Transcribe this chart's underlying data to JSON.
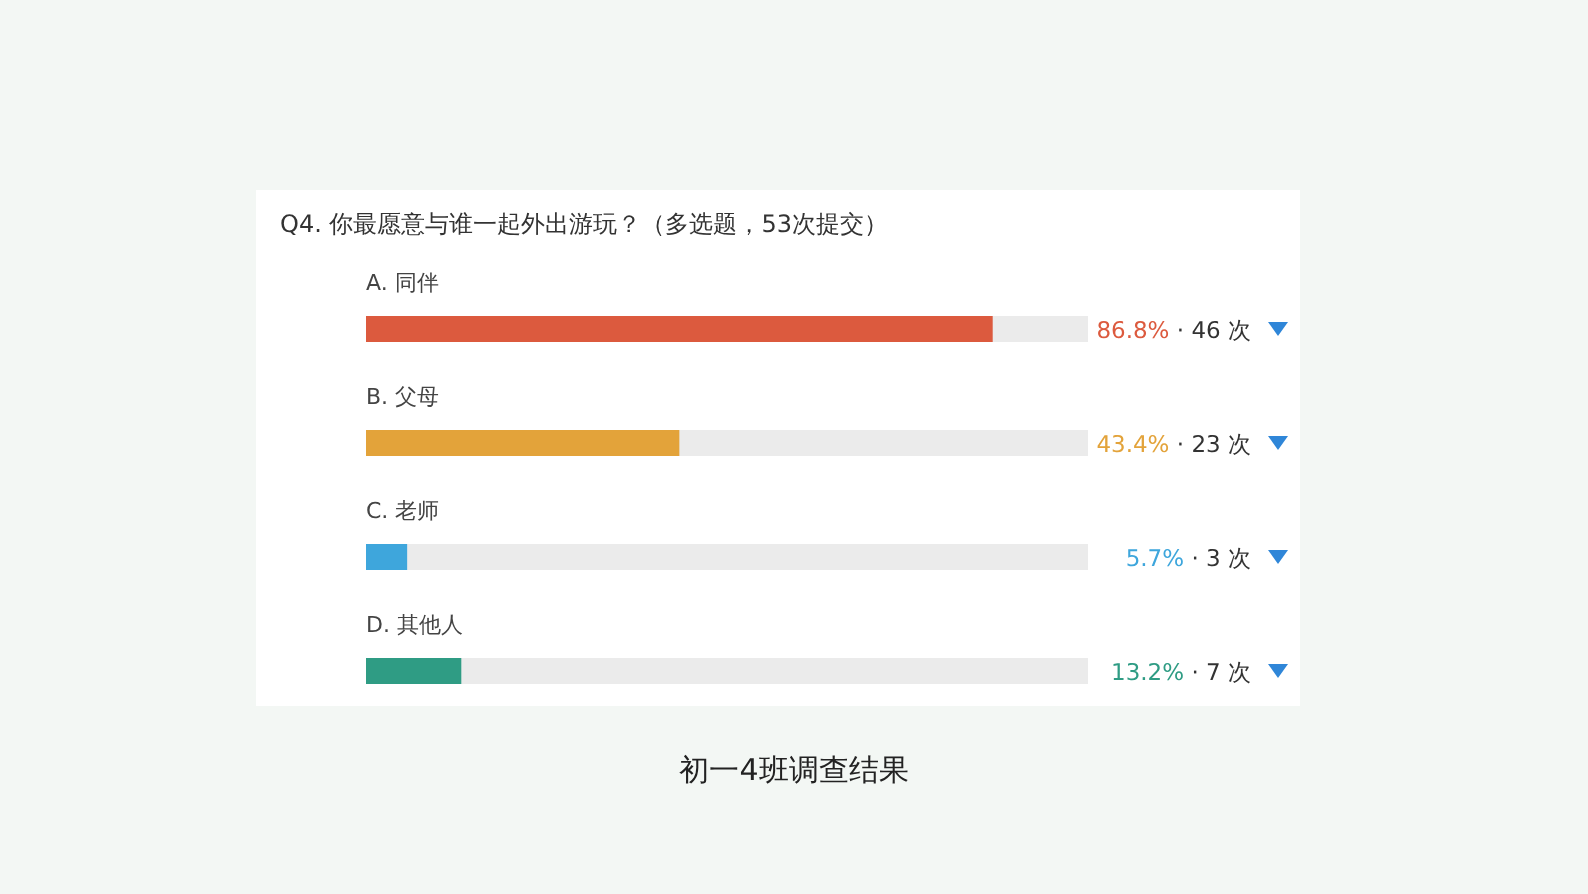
{
  "chart_data": {
    "type": "bar",
    "orientation": "horizontal",
    "title": "Q4.    你最愿意与谁一起外出游玩？（多选题，53次提交）",
    "categories": [
      "A. 同伴",
      "B. 父母",
      "C. 老师",
      "D. 其他人"
    ],
    "values": [
      86.8,
      43.4,
      5.7,
      13.2
    ],
    "colors": [
      "#dc5a3e",
      "#e3a33a",
      "#3ea6dc",
      "#2f9c84"
    ],
    "value_labels": [
      "86.8% · 46 次",
      "43.4% · 23 次",
      "5.7% · 3 次",
      "13.2% · 7 次"
    ],
    "xlim": [
      0,
      100
    ],
    "tick_labels": "y",
    "annotations": [
      "初一4班调查结果"
    ]
  }
}
